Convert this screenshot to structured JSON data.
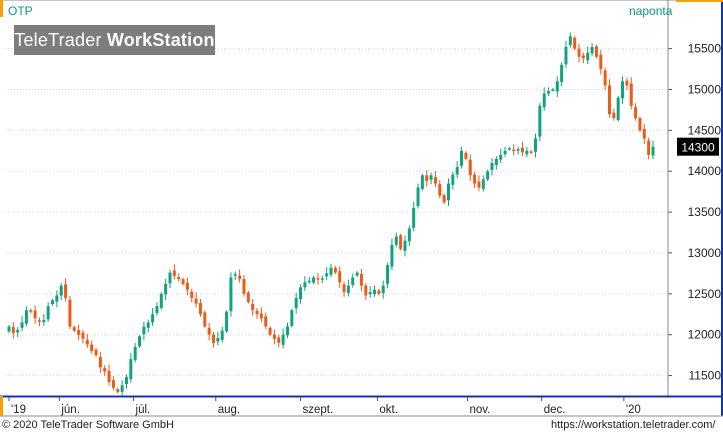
{
  "header": {
    "symbol": "OTP",
    "interval": "naponta"
  },
  "watermark": {
    "brand": "TeleTrader",
    "product": "WorkStation"
  },
  "footer": {
    "copyright": "© 2020 TeleTrader Software GmbH",
    "url": "https://workstation.teletrader.com/"
  },
  "colors": {
    "up": "#11a37f",
    "down": "#ed5b17",
    "frame": "#1a2fb8",
    "accent": "#f4a10b",
    "grid": "#d7d7d7",
    "last_bg": "#000000"
  },
  "chart_data": {
    "type": "candlestick",
    "title": "OTP",
    "interval": "naponta",
    "y_axis": {
      "position": "right",
      "ylim": [
        11250,
        15850
      ],
      "ticks": [
        11500,
        12000,
        12500,
        13000,
        13500,
        14000,
        14500,
        15000,
        15500
      ]
    },
    "x_axis": {
      "labels": [
        {
          "label": "'19",
          "date": "2019-05-15"
        },
        {
          "label": "jún.",
          "date": "2019-06-03"
        },
        {
          "label": "júl.",
          "date": "2019-07-01"
        },
        {
          "label": "aug.",
          "date": "2019-08-01"
        },
        {
          "label": "szept.",
          "date": "2019-09-02"
        },
        {
          "label": "okt.",
          "date": "2019-10-01"
        },
        {
          "label": "nov.",
          "date": "2019-11-04"
        },
        {
          "label": "dec.",
          "date": "2019-12-02"
        },
        {
          "label": "'20",
          "date": "2020-01-02"
        }
      ]
    },
    "grid": true,
    "last_value": 14300,
    "close_series": [
      12100,
      12020,
      12060,
      12150,
      12300,
      12280,
      12200,
      12160,
      12180,
      12350,
      12420,
      12480,
      12600,
      12450,
      12100,
      12050,
      12000,
      11950,
      11880,
      11800,
      11750,
      11600,
      11550,
      11420,
      11350,
      11300,
      11380,
      11480,
      11700,
      11850,
      11980,
      12100,
      12150,
      12250,
      12350,
      12500,
      12620,
      12760,
      12720,
      12680,
      12620,
      12550,
      12450,
      12380,
      12250,
      12100,
      12000,
      11900,
      11960,
      12050,
      12280,
      12700,
      12740,
      12680,
      12500,
      12400,
      12300,
      12250,
      12200,
      12100,
      12000,
      11950,
      11900,
      12000,
      12100,
      12300,
      12450,
      12580,
      12640,
      12660,
      12700,
      12680,
      12690,
      12750,
      12820,
      12760,
      12640,
      12520,
      12600,
      12700,
      12760,
      12600,
      12480,
      12520,
      12550,
      12500,
      12600,
      12850,
      13100,
      13200,
      13050,
      13150,
      13300,
      13550,
      13800,
      13950,
      13880,
      13950,
      13850,
      13700,
      13620,
      13850,
      13960,
      14050,
      14250,
      14150,
      13950,
      13850,
      13800,
      13900,
      14000,
      14100,
      14150,
      14200,
      14250,
      14280,
      14260,
      14270,
      14230,
      14250,
      14230,
      14400,
      14800,
      14950,
      14980,
      15000,
      15100,
      15300,
      15520,
      15650,
      15500,
      15400,
      15380,
      15450,
      15520,
      15400,
      15250,
      15050,
      14700,
      14650,
      14900,
      15100,
      15050,
      14800,
      14650,
      14500,
      14400,
      14200,
      14300
    ]
  }
}
